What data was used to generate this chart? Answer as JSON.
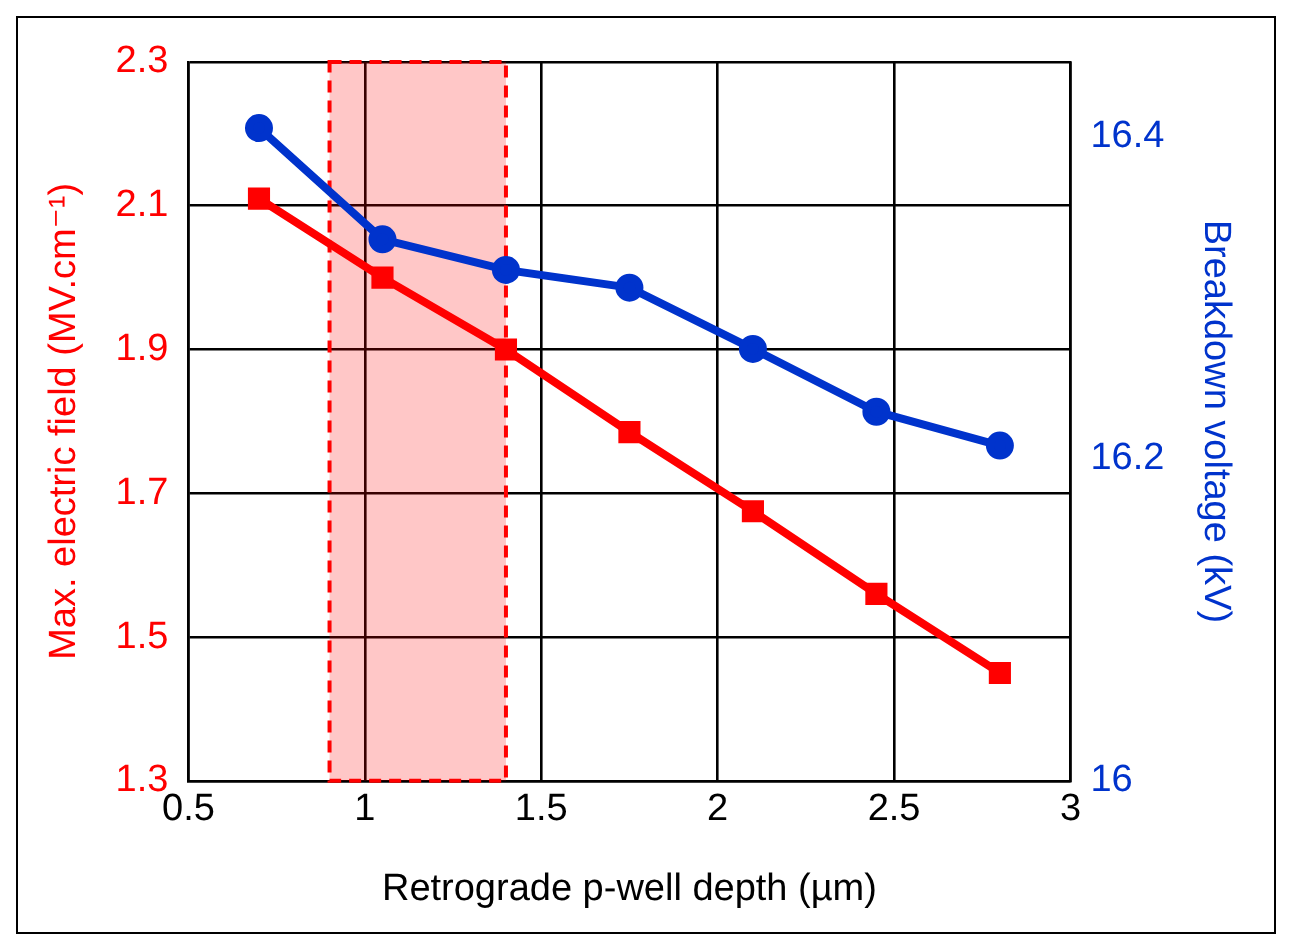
{
  "chart_data": {
    "type": "line",
    "xlabel": "Retrograde p-well depth (µm)",
    "ylabel": "Max. electric field (MV.cm⁻¹)",
    "y2label": "Breakdown voltage (kV)",
    "x": [
      0.7,
      1.05,
      1.4,
      1.75,
      2.1,
      2.45,
      2.8
    ],
    "series": [
      {
        "color": "#ff0000",
        "marker": "square",
        "values": [
          2.11,
          2.0,
          1.9,
          1.785,
          1.675,
          1.56,
          1.45
        ]
      },
      {
        "color": "#0033cc",
        "marker": "circle",
        "axis": "y2",
        "values": [
          16.405,
          16.336,
          16.317,
          16.306,
          16.268,
          16.229,
          16.208
        ]
      }
    ],
    "xlim": [
      0.5,
      3
    ],
    "xticks": [
      0.5,
      1,
      1.5,
      2,
      2.5,
      3
    ],
    "ylim": [
      1.3,
      2.3
    ],
    "yticks": [
      1.3,
      1.5,
      1.7,
      1.9,
      2.1,
      2.3
    ],
    "y2lim": [
      16,
      16.446
    ],
    "y2ticks": [
      16,
      16.2,
      16.4
    ],
    "bands": [
      {
        "axis": "x",
        "from": 0.9,
        "to": 1.4,
        "color": "#ff0000"
      }
    ],
    "grid": true,
    "legend": false,
    "line_style": "solid"
  }
}
